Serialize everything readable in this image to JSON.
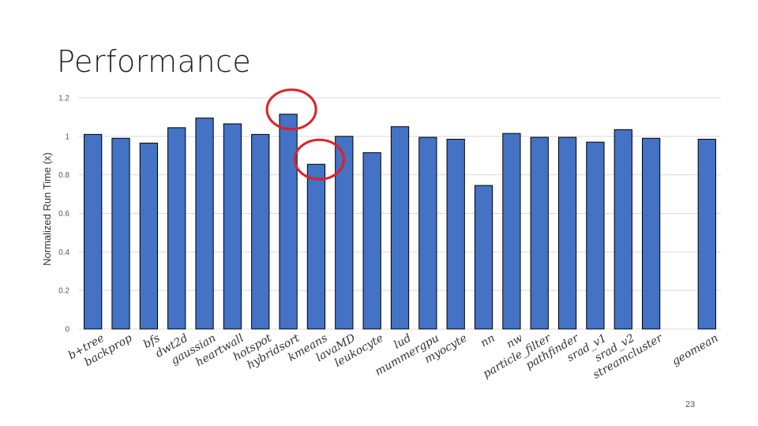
{
  "slide": {
    "title": "Performance",
    "page_number": "23"
  },
  "chart_data": {
    "type": "bar",
    "title": "",
    "xlabel": "",
    "ylabel": "Normalized Run Time (x)",
    "ylim": [
      0,
      1.2
    ],
    "yticks": [
      0,
      0.2,
      0.4,
      0.6,
      0.8,
      1,
      1.2
    ],
    "ytick_labels": [
      "0",
      "0.2",
      "0.4",
      "0.6",
      "0.8",
      "1",
      "1.2"
    ],
    "grid": true,
    "bar_color": "#4472C4",
    "bar_stroke": "#000000",
    "highlight_color": "#E02020",
    "categories": [
      "b+tree",
      "backprop",
      "bfs",
      "dwt2d",
      "gaussian",
      "heartwall",
      "hotspot",
      "hybridsort",
      "kmeans",
      "lavaMD",
      "leukocyte",
      "lud",
      "mummergpu",
      "myocyte",
      "nn",
      "nw",
      "particle_filter",
      "pathfinder",
      "srad_v1",
      "srad_v2",
      "streamcluster",
      "",
      "geomean"
    ],
    "values": [
      1.01,
      0.99,
      0.965,
      1.045,
      1.095,
      1.065,
      1.01,
      1.115,
      0.855,
      1.0,
      0.915,
      1.05,
      0.995,
      0.985,
      0.745,
      1.015,
      0.995,
      0.995,
      0.97,
      1.035,
      0.99,
      null,
      0.985
    ],
    "highlighted": [
      "hybridsort",
      "kmeans"
    ]
  }
}
